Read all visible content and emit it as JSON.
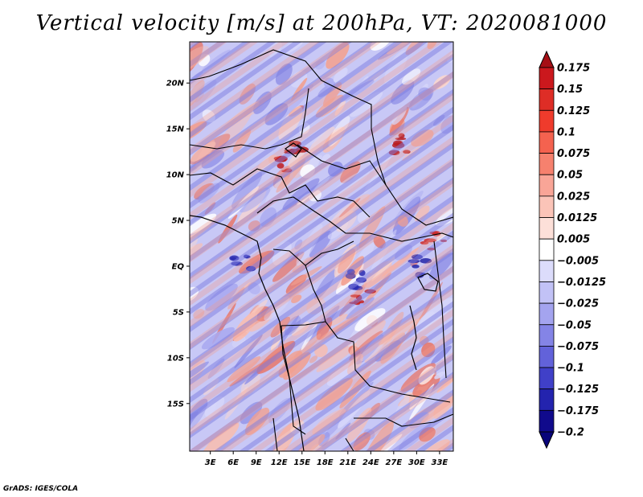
{
  "chart_data": {
    "type": "heatmap",
    "title": "Vertical velocity [m/s] at 200hPa, VT: 2020081000",
    "variable": "Vertical velocity",
    "units": "m/s",
    "level": "200hPa",
    "valid_time": "2020081000",
    "x_tick_labels": [
      "3E",
      "6E",
      "9E",
      "12E",
      "15E",
      "18E",
      "21E",
      "24E",
      "27E",
      "30E",
      "33E"
    ],
    "x_tick_values": [
      3,
      6,
      9,
      12,
      15,
      18,
      21,
      24,
      27,
      30,
      33
    ],
    "y_tick_labels": [
      "20N",
      "15N",
      "10N",
      "5N",
      "EQ",
      "5S",
      "10S",
      "15S"
    ],
    "y_tick_values": [
      20,
      15,
      10,
      5,
      0,
      -5,
      -10,
      -15
    ],
    "xlim": [
      0.3,
      34.8
    ],
    "ylim": [
      -20.2,
      24.5
    ],
    "colorbar_levels": [
      0.175,
      0.15,
      0.125,
      0.1,
      0.075,
      0.05,
      0.025,
      0.0125,
      0.005,
      -0.005,
      -0.0125,
      -0.025,
      -0.05,
      -0.075,
      -0.1,
      -0.125,
      -0.175,
      -0.2
    ],
    "colorbar_labels": [
      "0.175",
      "0.15",
      "0.125",
      "0.1",
      "0.075",
      "0.05",
      "0.025",
      "0.0125",
      "0.005",
      "−0.005",
      "−0.0125",
      "−0.025",
      "−0.05",
      "−0.075",
      "−0.1",
      "−0.125",
      "−0.175",
      "−0.2"
    ],
    "colorbar_colors": [
      "#a50f15",
      "#cb181d",
      "#de2d26",
      "#ef3b2c",
      "#f4624f",
      "#f6816e",
      "#f9a597",
      "#fbc4b8",
      "#fde0d9",
      "#ffffff",
      "#dcdcfb",
      "#c2c2f6",
      "#a4a4ef",
      "#8484e6",
      "#6262da",
      "#4040c8",
      "#2323ae",
      "#100a8c",
      "#08047a"
    ],
    "colorbar_extend": "both"
  },
  "credit": "GrADS: IGES/COLA"
}
